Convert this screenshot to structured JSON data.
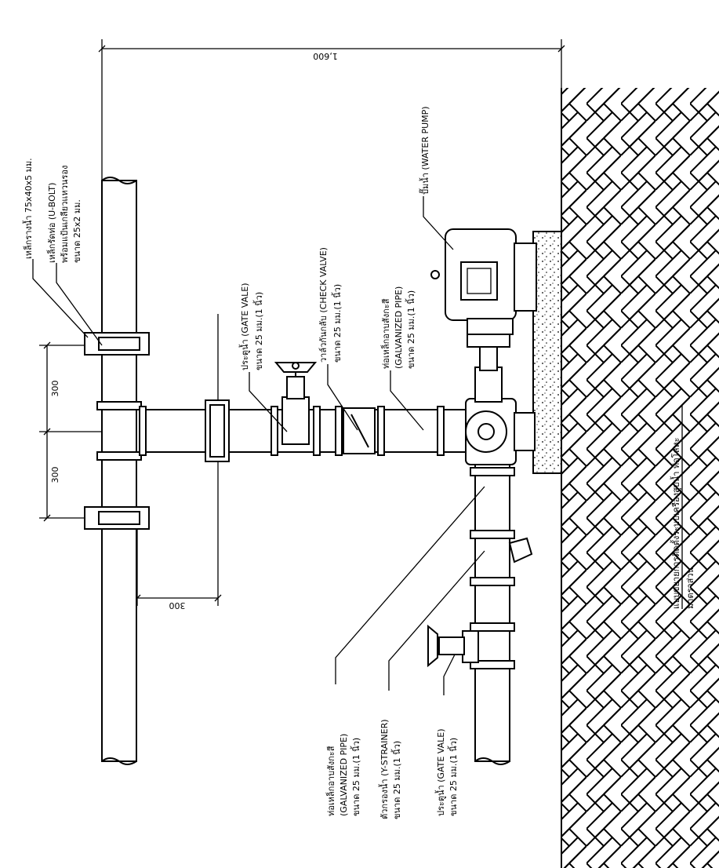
{
  "dimensions": {
    "overall": "1,600",
    "upper_spacing": "300",
    "lower_spacing": "300",
    "offset": "300"
  },
  "labels": {
    "steel_support": "เหล็กรางน้ำ 75x40x5 มม.",
    "u_bolt": "เหล็กรัดท่อ (U-BOLT)",
    "u_bolt_note": "พร้อมแป้นเกลียวแหวนรอง",
    "u_bolt_size": "ขนาด 25x2 มม.",
    "gate_valve_top": "ประตูน้ำ (GATE VALE)",
    "gate_valve_top_size": "ขนาด 25 มม.(1 นิ้ว)",
    "check_valve": "วาล์วกันกลับ (CHECK VALVE)",
    "check_valve_size": "ขนาด 25 มม.(1 นิ้ว)",
    "galv_pipe_top": "ท่อเหล็กอาบสังกะสี",
    "galv_pipe_top_en": "(GALVANIZED PIPE)",
    "galv_pipe_top_size": "ขนาด 25 มม.(1 นิ้ว)",
    "water_pump": "ปั๊มน้ำ (WATER PUMP)",
    "galv_pipe_bottom": "ท่อเหล็กอาบสังกะสี",
    "galv_pipe_bottom_en": "(GALVANIZED PIPE)",
    "galv_pipe_bottom_size": "ขนาด 25 มม.(1 นิ้ว)",
    "strainer": "ตัวกรองน้ำ (Y-STRAINER)",
    "strainer_size": "ขนาด 25 มม.(1 นิ้ว)",
    "gate_valve_bottom": "ประตูน้ำ (GATE VALE)",
    "gate_valve_bottom_size": "ขนาด 25 มม.(1 นิ้ว)"
  },
  "title": {
    "main": "แบบขยายการติดตั้งระบบเครื่องสูบน้ำ ท่อโลหะ",
    "scale": "มาตราส่วน"
  }
}
